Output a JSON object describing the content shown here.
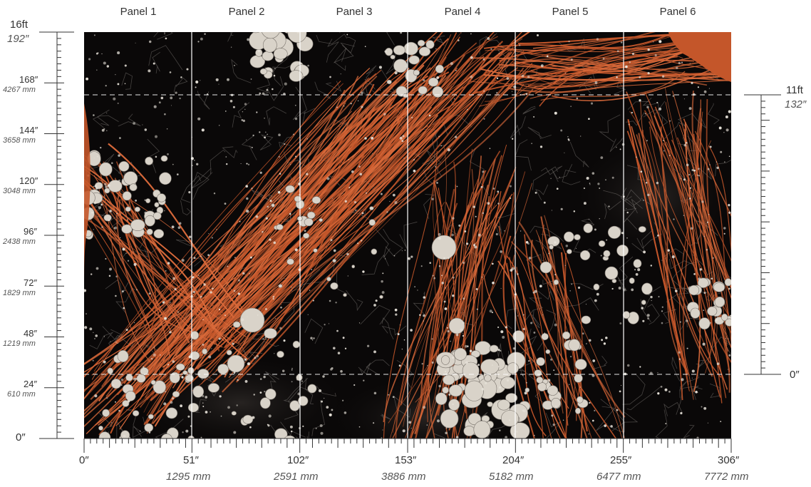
{
  "colors": {
    "background": "#0a0808",
    "vein": "#c4562a",
    "vein_light": "#d8693a",
    "bubble": "#d9d3c9",
    "ruler": "#333333"
  },
  "panels": [
    "Panel 1",
    "Panel 2",
    "Panel 3",
    "Panel 4",
    "Panel 5",
    "Panel 6"
  ],
  "left_ruler": {
    "top_ft": "16ft",
    "top_in": "192″",
    "bottom": "0″",
    "marks": [
      {
        "in": "168″",
        "mm": "4267 mm",
        "value": 168
      },
      {
        "in": "144″",
        "mm": "3658 mm",
        "value": 144
      },
      {
        "in": "120″",
        "mm": "3048 mm",
        "value": 120
      },
      {
        "in": "96″",
        "mm": "2438 mm",
        "value": 96
      },
      {
        "in": "72″",
        "mm": "1829 mm",
        "value": 72
      },
      {
        "in": "48″",
        "mm": "1219 mm",
        "value": 48
      },
      {
        "in": "24″",
        "mm": "610 mm",
        "value": 24
      }
    ]
  },
  "right_ruler": {
    "top_ft": "11ft",
    "top_in": "132″",
    "bottom": "0″"
  },
  "bottom_ruler": {
    "marks": [
      {
        "in": "0″",
        "mm": ""
      },
      {
        "in": "51″",
        "mm": "1295 mm"
      },
      {
        "in": "102″",
        "mm": "2591 mm"
      },
      {
        "in": "153″",
        "mm": "3886 mm"
      },
      {
        "in": "204″",
        "mm": "5182 mm"
      },
      {
        "in": "255″",
        "mm": "6477 mm"
      },
      {
        "in": "306″",
        "mm": "7772 mm"
      }
    ]
  }
}
